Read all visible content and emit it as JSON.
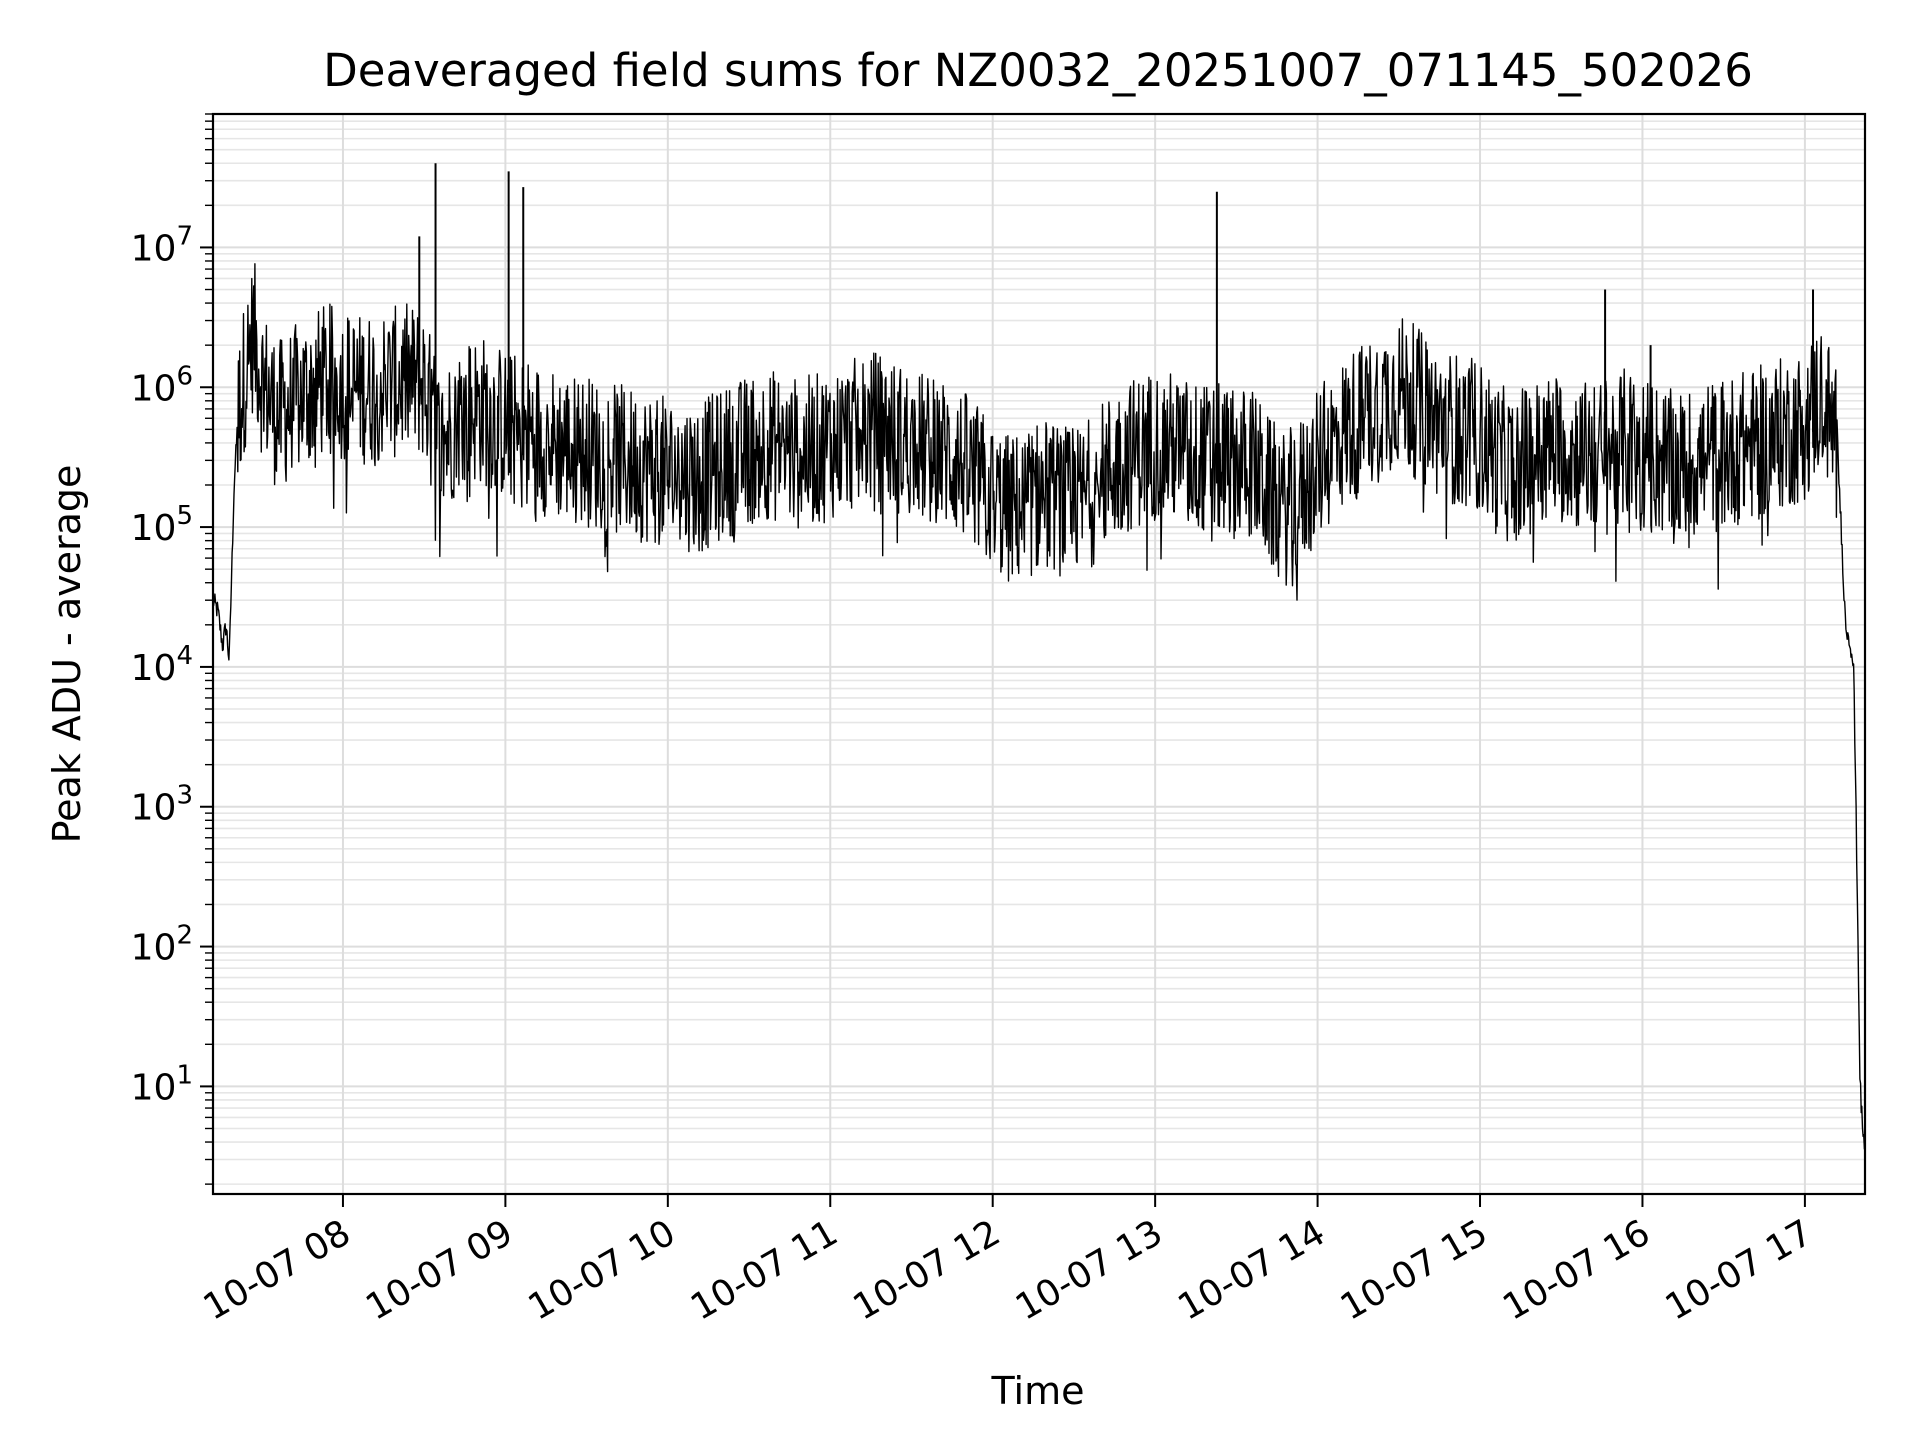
{
  "chart_data": {
    "type": "line",
    "title": "Deaveraged field sums for NZ0032_20251007_071145_502026",
    "xlabel": "Time",
    "ylabel": "Peak ADU - average",
    "yscale": "log",
    "ylim": [
      1.7,
      90000000
    ],
    "xlim_hours": [
      7.2,
      17.37
    ],
    "grid": true,
    "x_tick_labels": [
      {
        "hour": 8,
        "label": "10-07 08"
      },
      {
        "hour": 9,
        "label": "10-07 09"
      },
      {
        "hour": 10,
        "label": "10-07 10"
      },
      {
        "hour": 11,
        "label": "10-07 11"
      },
      {
        "hour": 12,
        "label": "10-07 12"
      },
      {
        "hour": 13,
        "label": "10-07 13"
      },
      {
        "hour": 14,
        "label": "10-07 14"
      },
      {
        "hour": 15,
        "label": "10-07 15"
      },
      {
        "hour": 16,
        "label": "10-07 16"
      },
      {
        "hour": 17,
        "label": "10-07 17"
      }
    ],
    "y_tick_labels": [
      {
        "value": 10,
        "base": "10",
        "exp": "1"
      },
      {
        "value": 100,
        "base": "10",
        "exp": "2"
      },
      {
        "value": 1000,
        "base": "10",
        "exp": "3"
      },
      {
        "value": 10000,
        "base": "10",
        "exp": "4"
      },
      {
        "value": 100000,
        "base": "10",
        "exp": "5"
      },
      {
        "value": 1000000,
        "base": "10",
        "exp": "6"
      },
      {
        "value": 10000000,
        "base": "10",
        "exp": "7"
      }
    ],
    "series": [
      {
        "name": "Peak ADU - average",
        "color": "#000000",
        "x_hours": [
          7.2,
          7.23,
          7.26,
          7.28,
          7.3,
          7.33,
          7.36,
          7.4,
          7.45,
          7.5,
          7.6,
          7.7,
          7.8,
          7.9,
          8.0,
          8.1,
          8.2,
          8.3,
          8.4,
          8.5,
          8.6,
          8.7,
          8.8,
          8.9,
          9.0,
          9.1,
          9.2,
          9.3,
          9.4,
          9.5,
          9.6,
          9.7,
          9.8,
          9.9,
          10.0,
          10.1,
          10.2,
          10.3,
          10.4,
          10.5,
          10.6,
          10.7,
          10.8,
          10.9,
          11.0,
          11.1,
          11.2,
          11.3,
          11.4,
          11.5,
          11.6,
          11.7,
          11.8,
          11.9,
          12.0,
          12.1,
          12.2,
          12.3,
          12.4,
          12.5,
          12.6,
          12.7,
          12.8,
          12.9,
          13.0,
          13.1,
          13.2,
          13.3,
          13.4,
          13.5,
          13.6,
          13.7,
          13.8,
          13.9,
          14.0,
          14.1,
          14.2,
          14.3,
          14.4,
          14.5,
          14.6,
          14.7,
          14.8,
          14.9,
          15.0,
          15.1,
          15.2,
          15.3,
          15.4,
          15.5,
          15.6,
          15.7,
          15.8,
          15.9,
          16.0,
          16.1,
          16.2,
          16.3,
          16.4,
          16.5,
          16.6,
          16.7,
          16.8,
          16.9,
          17.0,
          17.05,
          17.1,
          17.15,
          17.2,
          17.25,
          17.28,
          17.3,
          17.32,
          17.34,
          17.36,
          17.37
        ],
        "values": [
          30000,
          25000,
          14000,
          20000,
          11000,
          200000,
          800000,
          1500000,
          2800000,
          1300000,
          700000,
          900000,
          1100000,
          1300000,
          1200000,
          1100000,
          1150000,
          1200000,
          1300000,
          1200000,
          400000,
          700000,
          800000,
          750000,
          600000,
          550000,
          500000,
          450000,
          420000,
          400000,
          360000,
          340000,
          320000,
          300000,
          280000,
          270000,
          260000,
          300000,
          350000,
          400000,
          450000,
          420000,
          380000,
          400000,
          450000,
          500000,
          550000,
          600000,
          500000,
          450000,
          400000,
          380000,
          330000,
          250000,
          180000,
          150000,
          160000,
          200000,
          180000,
          160000,
          200000,
          280000,
          350000,
          400000,
          450000,
          420000,
          380000,
          350000,
          340000,
          330000,
          320000,
          200000,
          150000,
          200000,
          300000,
          450000,
          600000,
          700000,
          900000,
          1100000,
          900000,
          700000,
          600000,
          550000,
          500000,
          350000,
          300000,
          350000,
          400000,
          420000,
          380000,
          350000,
          400000,
          450000,
          400000,
          350000,
          300000,
          320000,
          350000,
          380000,
          420000,
          450000,
          500000,
          550000,
          600000,
          800000,
          1000000,
          700000,
          400000,
          20000,
          15000,
          10000,
          400,
          10,
          4,
          4
        ],
        "spikes": [
          {
            "hour": 8.47,
            "value": 12000000
          },
          {
            "hour": 8.57,
            "value": 40000000
          },
          {
            "hour": 9.02,
            "value": 35000000
          },
          {
            "hour": 9.11,
            "value": 27000000
          },
          {
            "hour": 13.38,
            "value": 25000000
          },
          {
            "hour": 15.77,
            "value": 5000000
          },
          {
            "hour": 16.05,
            "value": 2000000
          },
          {
            "hour": 17.05,
            "value": 5000000
          }
        ],
        "noise_band_decades": 0.55
      }
    ]
  }
}
